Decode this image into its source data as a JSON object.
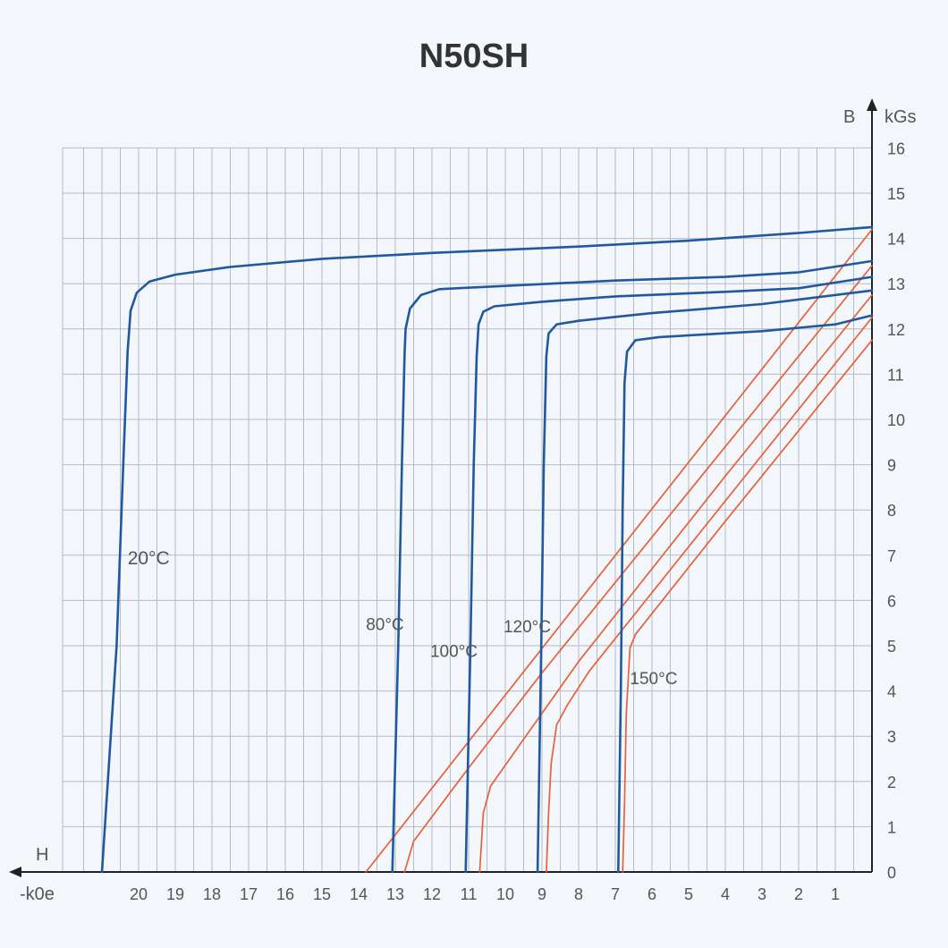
{
  "chart_data": {
    "type": "line",
    "title": "N50SH",
    "xlabel": "H",
    "x_unit": "-k0e",
    "ylabel": "B",
    "y_unit": "kGs",
    "x_ticks": [
      "20",
      "19",
      "18",
      "17",
      "16",
      "15",
      "14",
      "13",
      "12",
      "11",
      "10",
      "9",
      "8",
      "7",
      "6",
      "5",
      "4",
      "3",
      "2",
      "1"
    ],
    "y_ticks": [
      "0",
      "1",
      "2",
      "3",
      "4",
      "5",
      "6",
      "7",
      "8",
      "9",
      "10",
      "11",
      "12",
      "13",
      "14",
      "15",
      "16"
    ],
    "xlim": [
      22.0,
      0
    ],
    "ylim": [
      0,
      16
    ],
    "grid": true,
    "colors": {
      "bh": "#1f5a9e",
      "j": "#e8603a",
      "grid": "#b5bcc5",
      "axis": "#222222"
    },
    "series": [
      {
        "name": "20°C",
        "kind": "B",
        "label_at": [
          20.3,
          6.8
        ],
        "label_size": 21,
        "points": [
          [
            21.0,
            0
          ],
          [
            20.6,
            5.0
          ],
          [
            20.42,
            9.0
          ],
          [
            20.3,
            11.5
          ],
          [
            20.22,
            12.4
          ],
          [
            20.05,
            12.8
          ],
          [
            19.7,
            13.05
          ],
          [
            19.0,
            13.2
          ],
          [
            17.5,
            13.37
          ],
          [
            15.0,
            13.55
          ],
          [
            12.0,
            13.68
          ],
          [
            8.0,
            13.82
          ],
          [
            5.0,
            13.95
          ],
          [
            2.0,
            14.12
          ],
          [
            0,
            14.25
          ]
        ]
      },
      {
        "name": "80°C",
        "kind": "B",
        "label_at": [
          13.8,
          5.35
        ],
        "label_size": 19,
        "points": [
          [
            13.08,
            0
          ],
          [
            12.92,
            5.0
          ],
          [
            12.82,
            9.0
          ],
          [
            12.75,
            11.4
          ],
          [
            12.72,
            12.0
          ],
          [
            12.6,
            12.45
          ],
          [
            12.3,
            12.75
          ],
          [
            11.8,
            12.88
          ],
          [
            10.0,
            12.95
          ],
          [
            7.0,
            13.07
          ],
          [
            4.0,
            13.15
          ],
          [
            2.0,
            13.25
          ],
          [
            0,
            13.5
          ]
        ]
      },
      {
        "name": "100°C",
        "kind": "B",
        "label_at": [
          12.05,
          4.75
        ],
        "label_size": 19,
        "points": [
          [
            11.08,
            0
          ],
          [
            10.95,
            5.0
          ],
          [
            10.86,
            9.0
          ],
          [
            10.78,
            11.4
          ],
          [
            10.73,
            12.1
          ],
          [
            10.6,
            12.38
          ],
          [
            10.3,
            12.5
          ],
          [
            9.0,
            12.6
          ],
          [
            7.0,
            12.72
          ],
          [
            4.0,
            12.82
          ],
          [
            2.0,
            12.9
          ],
          [
            0,
            13.15
          ]
        ]
      },
      {
        "name": "120°C",
        "kind": "B",
        "label_at": [
          10.05,
          5.3
        ],
        "label_size": 19,
        "points": [
          [
            9.12,
            0
          ],
          [
            9.02,
            5.0
          ],
          [
            8.95,
            9.0
          ],
          [
            8.88,
            11.4
          ],
          [
            8.82,
            11.9
          ],
          [
            8.6,
            12.1
          ],
          [
            8.0,
            12.18
          ],
          [
            6.0,
            12.35
          ],
          [
            3.0,
            12.55
          ],
          [
            0,
            12.85
          ]
        ]
      },
      {
        "name": "150°C",
        "kind": "B",
        "label_at": [
          6.6,
          4.15
        ],
        "label_size": 19,
        "points": [
          [
            6.92,
            0
          ],
          [
            6.85,
            4.0
          ],
          [
            6.8,
            8.0
          ],
          [
            6.75,
            10.8
          ],
          [
            6.68,
            11.5
          ],
          [
            6.45,
            11.75
          ],
          [
            5.8,
            11.82
          ],
          [
            3.0,
            11.95
          ],
          [
            1.0,
            12.1
          ],
          [
            0,
            12.3
          ]
        ]
      },
      {
        "name": "",
        "kind": "J",
        "points": [
          [
            13.8,
            0
          ],
          [
            0,
            14.2
          ]
        ]
      },
      {
        "name": "",
        "kind": "J",
        "points": [
          [
            12.75,
            0
          ],
          [
            12.5,
            0.68
          ],
          [
            11.0,
            2.3
          ],
          [
            9.0,
            4.4
          ],
          [
            4.5,
            8.9
          ],
          [
            0,
            13.4
          ]
        ]
      },
      {
        "name": "",
        "kind": "J",
        "points": [
          [
            10.7,
            0
          ],
          [
            10.6,
            1.3
          ],
          [
            10.4,
            1.9
          ],
          [
            9.4,
            3.05
          ],
          [
            8.0,
            4.65
          ],
          [
            4.0,
            8.75
          ],
          [
            0,
            12.75
          ]
        ]
      },
      {
        "name": "",
        "kind": "J",
        "points": [
          [
            8.88,
            0
          ],
          [
            8.82,
            1.3
          ],
          [
            8.75,
            2.4
          ],
          [
            8.6,
            3.25
          ],
          [
            8.3,
            3.7
          ],
          [
            7.7,
            4.45
          ],
          [
            4.0,
            8.2
          ],
          [
            0,
            12.25
          ]
        ]
      },
      {
        "name": "",
        "kind": "J",
        "points": [
          [
            6.8,
            0
          ],
          [
            6.75,
            1.5
          ],
          [
            6.7,
            3.5
          ],
          [
            6.6,
            4.95
          ],
          [
            6.45,
            5.25
          ],
          [
            4.0,
            7.75
          ],
          [
            0,
            11.75
          ]
        ]
      }
    ]
  }
}
